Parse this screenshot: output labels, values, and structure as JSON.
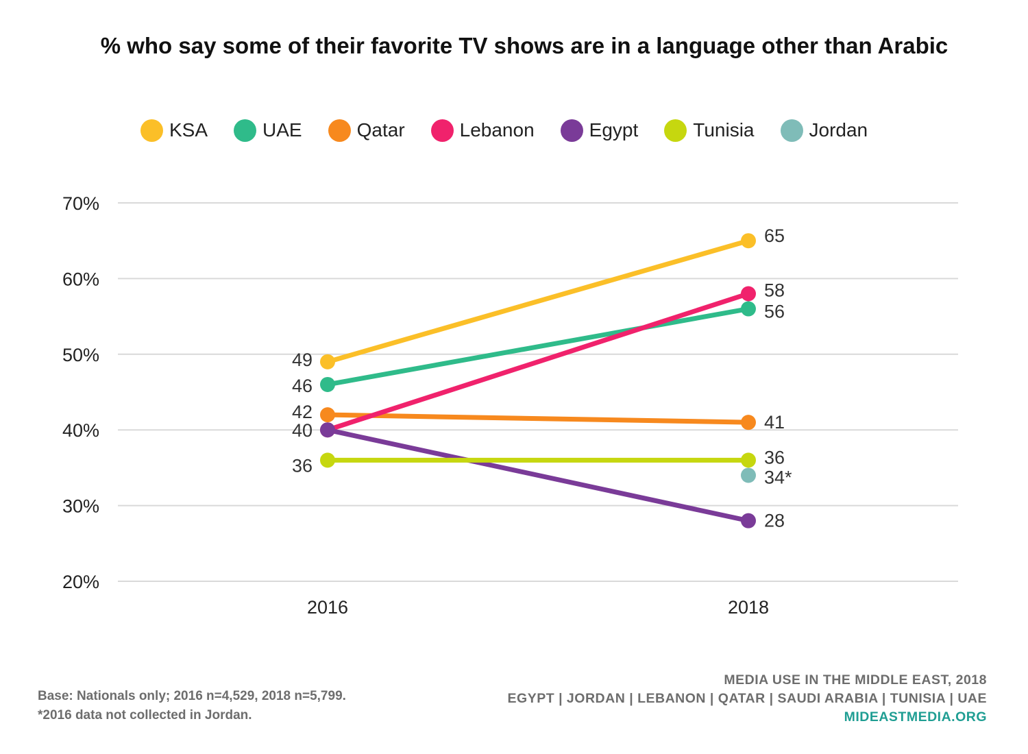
{
  "chart_data": {
    "type": "line",
    "title": "% who say some of their favorite TV shows are in a language other than Arabic",
    "x": [
      "2016",
      "2018"
    ],
    "ylim": [
      20,
      70
    ],
    "y_ticks": [
      "20%",
      "30%",
      "40%",
      "50%",
      "60%",
      "70%"
    ],
    "grid": true,
    "legend_position": "top",
    "series": [
      {
        "name": "KSA",
        "color": "#fbbf28",
        "values": [
          49,
          65
        ],
        "labels": [
          "49",
          "65"
        ]
      },
      {
        "name": "UAE",
        "color": "#2fbb8a",
        "values": [
          46,
          56
        ],
        "labels": [
          "46",
          "56"
        ]
      },
      {
        "name": "Qatar",
        "color": "#f7891e",
        "values": [
          42,
          41
        ],
        "labels": [
          "42",
          "41"
        ]
      },
      {
        "name": "Lebanon",
        "color": "#f0226c",
        "values": [
          40,
          58
        ],
        "labels": [
          "",
          "58"
        ]
      },
      {
        "name": "Egypt",
        "color": "#7a3b98",
        "values": [
          40,
          28
        ],
        "labels": [
          "40",
          "28"
        ]
      },
      {
        "name": "Tunisia",
        "color": "#c6d70f",
        "values": [
          36,
          36
        ],
        "labels": [
          "36",
          "36"
        ]
      },
      {
        "name": "Jordan",
        "color": "#7fbcb8",
        "values": [
          null,
          34
        ],
        "labels": [
          "",
          "34*"
        ]
      }
    ]
  },
  "footer": {
    "base_note": "Base: Nationals only; 2016 n=4,529, 2018 n=5,799.",
    "jordan_note": "*2016 data not collected in Jordan.",
    "source_title": "MEDIA USE IN THE MIDDLE EAST, 2018",
    "countries": "EGYPT | JORDAN | LEBANON | QATAR | SAUDI ARABIA | TUNISIA | UAE",
    "website": "MIDEASTMEDIA.ORG"
  }
}
